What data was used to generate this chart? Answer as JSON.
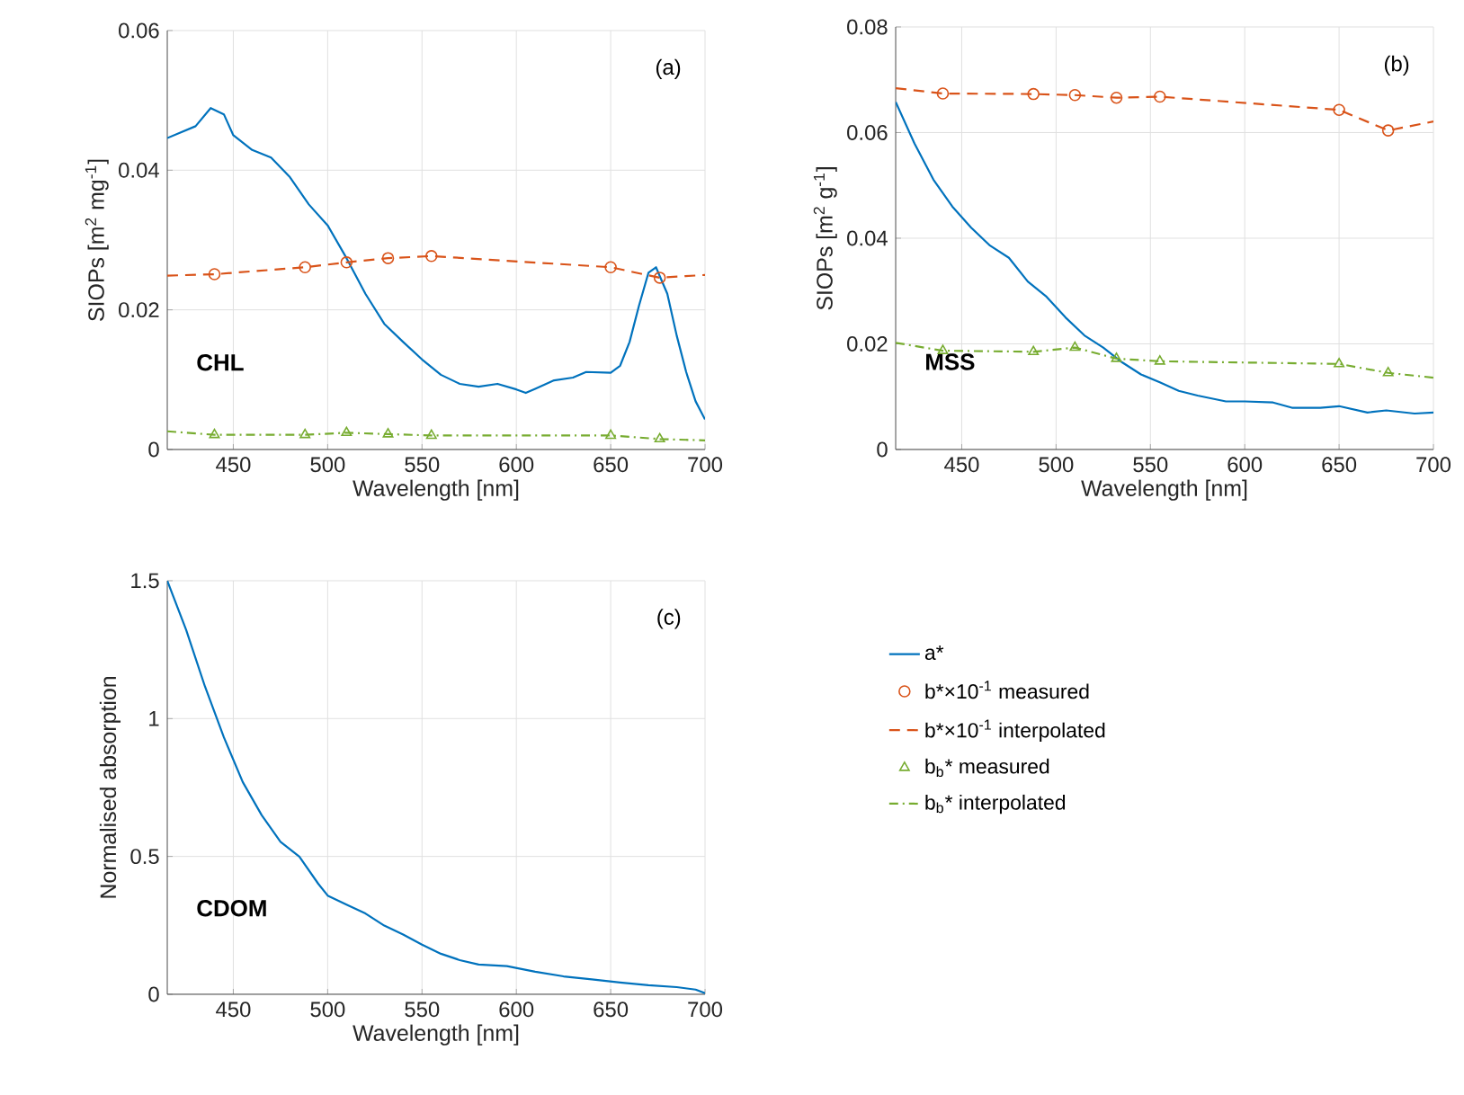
{
  "chart_data": [
    {
      "type": "line",
      "xlabel": "Wavelength [nm]",
      "ylabel": "SIOPs [m$^{2}$ mg$^{-1}$]",
      "xlim": [
        415,
        700
      ],
      "ylim": [
        0,
        0.06
      ],
      "xticks": [
        450,
        500,
        550,
        600,
        650,
        700
      ],
      "yticks": [
        0,
        0.02,
        0.04,
        0.06
      ],
      "grid": true,
      "legend": "bottom right",
      "annotations": [
        "(a)",
        "CHL"
      ],
      "series": [
        {
          "name": "a*",
          "type": "line",
          "color": "#0072bd",
          "line_style": "solid",
          "x": [
            415,
            430,
            438,
            445,
            450,
            460,
            470,
            480,
            490,
            500,
            510,
            520,
            530,
            540,
            550,
            560,
            570,
            580,
            590,
            600,
            605,
            610,
            620,
            630,
            637,
            650,
            655,
            660,
            665,
            670,
            674,
            680,
            685,
            690,
            695,
            700
          ],
          "values": [
            0.0446,
            0.0463,
            0.0489,
            0.048,
            0.045,
            0.0429,
            0.0418,
            0.039,
            0.0351,
            0.0321,
            0.0274,
            0.0223,
            0.018,
            0.0154,
            0.0129,
            0.0107,
            0.0094,
            0.009,
            0.0094,
            0.0086,
            0.0081,
            0.0087,
            0.0099,
            0.0103,
            0.0111,
            0.011,
            0.012,
            0.0154,
            0.0206,
            0.0253,
            0.0261,
            0.0223,
            0.0163,
            0.0111,
            0.0069,
            0.0043
          ]
        },
        {
          "name": "b*×10$^{-1}$ measured",
          "type": "scatter",
          "color": "#d95319",
          "marker": "circle",
          "x": [
            440,
            488,
            510,
            532,
            555,
            650,
            676
          ],
          "values": [
            0.0251,
            0.0261,
            0.0268,
            0.0274,
            0.0277,
            0.0261,
            0.0246
          ]
        },
        {
          "name": "b*×10$^{-1}$ interpolated",
          "type": "line",
          "color": "#d95319",
          "line_style": "dashed",
          "x": [
            415,
            440,
            488,
            510,
            532,
            555,
            650,
            676,
            700
          ],
          "values": [
            0.0249,
            0.0251,
            0.0261,
            0.0268,
            0.0274,
            0.0277,
            0.0261,
            0.0246,
            0.025
          ]
        },
        {
          "name": "b$_{b}$* measured",
          "type": "scatter",
          "color": "#77ac30",
          "marker": "triangle",
          "x": [
            440,
            488,
            510,
            532,
            555,
            650,
            676
          ],
          "values": [
            0.0021,
            0.0021,
            0.0024,
            0.0022,
            0.002,
            0.002,
            0.0015
          ]
        },
        {
          "name": "b$_{b}$* interpolated",
          "type": "line",
          "color": "#77ac30",
          "line_style": "dashdot",
          "x": [
            415,
            440,
            488,
            510,
            532,
            555,
            650,
            676,
            700
          ],
          "values": [
            0.0026,
            0.0021,
            0.0021,
            0.0024,
            0.0022,
            0.002,
            0.002,
            0.0015,
            0.0013
          ]
        }
      ]
    },
    {
      "type": "line",
      "xlabel": "Wavelength [nm]",
      "ylabel": "SIOPs [m$^{2}$ g$^{-1}$]",
      "xlim": [
        415,
        700
      ],
      "ylim": [
        0,
        0.08
      ],
      "xticks": [
        450,
        500,
        550,
        600,
        650,
        700
      ],
      "yticks": [
        0,
        0.02,
        0.04,
        0.06,
        0.08
      ],
      "grid": true,
      "annotations": [
        "(b)",
        "MSS"
      ],
      "series": [
        {
          "type": "line",
          "color": "#0072bd",
          "line_style": "solid",
          "x": [
            415,
            425,
            435,
            445,
            455,
            465,
            475,
            485,
            495,
            505,
            515,
            525,
            535,
            545,
            555,
            565,
            575,
            590,
            600,
            615,
            625,
            640,
            650,
            665,
            675,
            690,
            700
          ],
          "values": [
            0.0658,
            0.0579,
            0.0511,
            0.046,
            0.042,
            0.0386,
            0.0363,
            0.0318,
            0.0289,
            0.025,
            0.0216,
            0.0193,
            0.0165,
            0.0142,
            0.0127,
            0.0111,
            0.0102,
            0.0091,
            0.0091,
            0.0089,
            0.0079,
            0.0079,
            0.0082,
            0.007,
            0.0074,
            0.0068,
            0.007
          ]
        },
        {
          "type": "scatter",
          "color": "#d95319",
          "marker": "circle",
          "x": [
            440,
            488,
            510,
            532,
            555,
            650,
            676
          ],
          "values": [
            0.0674,
            0.0673,
            0.0671,
            0.0666,
            0.0668,
            0.0643,
            0.0604
          ]
        },
        {
          "type": "line",
          "color": "#d95319",
          "line_style": "dashed",
          "x": [
            415,
            440,
            488,
            510,
            532,
            555,
            650,
            676,
            700
          ],
          "values": [
            0.0684,
            0.0674,
            0.0673,
            0.0671,
            0.0666,
            0.0668,
            0.0643,
            0.0604,
            0.0621
          ]
        },
        {
          "type": "scatter",
          "color": "#77ac30",
          "marker": "triangle",
          "x": [
            440,
            488,
            510,
            532,
            555,
            650,
            676
          ],
          "values": [
            0.0187,
            0.0185,
            0.0193,
            0.0172,
            0.0167,
            0.0162,
            0.0145
          ]
        },
        {
          "type": "line",
          "color": "#77ac30",
          "line_style": "dashdot",
          "x": [
            415,
            440,
            488,
            510,
            532,
            555,
            650,
            676,
            700
          ],
          "values": [
            0.0202,
            0.0187,
            0.0185,
            0.0193,
            0.0172,
            0.0167,
            0.0162,
            0.0145,
            0.0136
          ]
        }
      ]
    },
    {
      "type": "line",
      "xlabel": "Wavelength [nm]",
      "ylabel": "Normalised absorption",
      "xlim": [
        415,
        700
      ],
      "ylim": [
        0,
        1.5
      ],
      "xticks": [
        450,
        500,
        550,
        600,
        650,
        700
      ],
      "yticks": [
        0,
        0.5,
        1,
        1.5
      ],
      "grid": true,
      "annotations": [
        "(c)",
        "CDOM"
      ],
      "series": [
        {
          "type": "line",
          "color": "#0072bd",
          "line_style": "solid",
          "x": [
            415,
            425,
            435,
            445,
            455,
            465,
            475,
            485,
            495,
            500,
            510,
            520,
            530,
            540,
            550,
            560,
            570,
            580,
            595,
            610,
            625,
            640,
            655,
            670,
            685,
            695,
            700
          ],
          "values": [
            1.5,
            1.322,
            1.116,
            0.932,
            0.77,
            0.65,
            0.553,
            0.499,
            0.401,
            0.358,
            0.325,
            0.293,
            0.249,
            0.217,
            0.18,
            0.147,
            0.124,
            0.108,
            0.102,
            0.082,
            0.065,
            0.054,
            0.043,
            0.033,
            0.026,
            0.017,
            0.004
          ]
        }
      ]
    }
  ]
}
